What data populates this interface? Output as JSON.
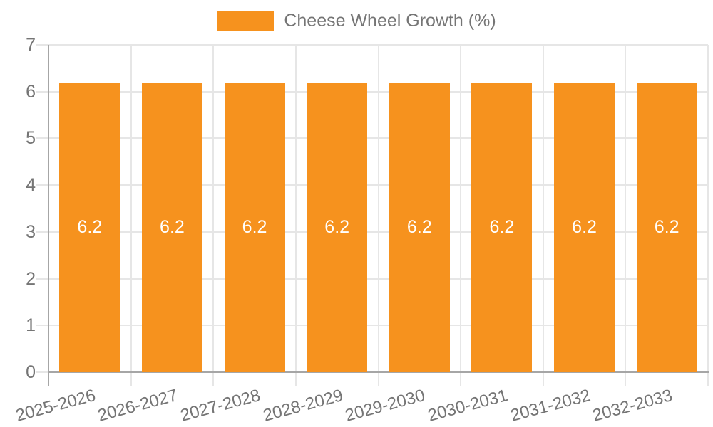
{
  "chart_data": {
    "type": "bar",
    "title": "Cheese Wheel Growth (%)",
    "categories": [
      "2025-2026",
      "2026-2027",
      "2027-2028",
      "2028-2029",
      "2029-2030",
      "2030-2031",
      "2031-2032",
      "2032-2033"
    ],
    "series": [
      {
        "name": "Cheese Wheel Growth (%)",
        "values": [
          6.2,
          6.2,
          6.2,
          6.2,
          6.2,
          6.2,
          6.2,
          6.2
        ]
      }
    ],
    "value_labels": [
      "6.2",
      "6.2",
      "6.2",
      "6.2",
      "6.2",
      "6.2",
      "6.2",
      "6.2"
    ],
    "xlabel": "",
    "ylabel": "",
    "ylim": [
      0,
      7
    ],
    "yticks": [
      0,
      1,
      2,
      3,
      4,
      5,
      6,
      7
    ],
    "grid": true,
    "legend_position": "top"
  },
  "legend": {
    "label": "Cheese Wheel Growth (%)"
  },
  "colors": {
    "bar": "#F6921E",
    "grid": "#E6E6E6",
    "axis": "#A6A6A6",
    "text": "#757575",
    "value_label": "#FFFFFF"
  }
}
